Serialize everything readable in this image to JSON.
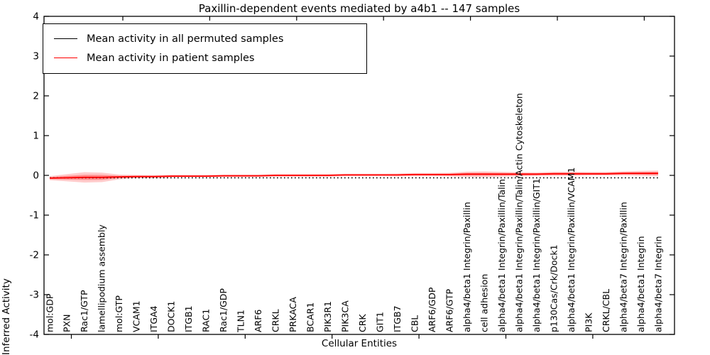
{
  "figure": {
    "title": "Paxillin-dependent events mediated by a4b1 -- 147 samples"
  },
  "legend": {
    "items": [
      {
        "label": "Mean activity in all permuted samples",
        "color": "#000000"
      },
      {
        "label": "Mean activity in patient samples",
        "color": "#ff0000"
      }
    ]
  },
  "axes": {
    "x_label": "Cellular Entities",
    "y_label": "Inferred Activity"
  },
  "chart_data": {
    "type": "line",
    "title": "Paxillin-dependent events mediated by a4b1 -- 147 samples",
    "xlabel": "Cellular Entities",
    "ylabel": "Inferred Activity",
    "ylim": [
      -4,
      4
    ],
    "yticks": [
      4,
      3,
      2,
      1,
      0,
      -1,
      -2,
      -3,
      -4
    ],
    "grid": false,
    "legend_position": "upper left",
    "categories": [
      "mol:GDP",
      "PXN",
      "Rac1/GTP",
      "lamellipodium assembly",
      "mol:GTP",
      "VCAM1",
      "ITGA4",
      "DOCK1",
      "ITGB1",
      "RAC1",
      "Rac1/GDP",
      "TLN1",
      "ARF6",
      "CRKL",
      "PRKACA",
      "BCAR1",
      "PIK3R1",
      "PIK3CA",
      "CRK",
      "GIT1",
      "ITGB7",
      "CBL",
      "ARF6/GDP",
      "ARF6/GTP",
      "alpha4/beta1 Integrin/Paxillin",
      "cell adhesion",
      "alpha4/beta1 Integrin/Paxillin/Talin",
      "alpha4/beta1 Integrin/Paxillin/Talin/Actin Cytoskeleton",
      "alpha4/beta1 Integrin/Paxillin/GIT1",
      "p130Cas/Crk/Dock1",
      "alpha4/beta1 Integrin/Paxillin/VCAM1",
      "PI3K",
      "CRKL/CBL",
      "alpha4/beta7 Integrin/Paxillin",
      "alpha4/beta1 Integrin",
      "alpha4/beta7 Integrin"
    ],
    "series": [
      {
        "name": "Mean activity in all permuted samples",
        "color": "#000000",
        "style": "dotted",
        "values": [
          -0.06,
          -0.06,
          -0.06,
          -0.06,
          -0.06,
          -0.06,
          -0.06,
          -0.06,
          -0.06,
          -0.06,
          -0.06,
          -0.06,
          -0.06,
          -0.06,
          -0.06,
          -0.06,
          -0.06,
          -0.06,
          -0.06,
          -0.06,
          -0.06,
          -0.06,
          -0.06,
          -0.06,
          -0.06,
          -0.06,
          -0.06,
          -0.06,
          -0.06,
          -0.06,
          -0.06,
          -0.06,
          -0.06,
          -0.06,
          -0.06,
          -0.06
        ]
      },
      {
        "name": "Mean activity in patient samples",
        "color": "#ff0000",
        "style": "solid",
        "values": [
          -0.07,
          -0.06,
          -0.05,
          -0.05,
          -0.04,
          -0.03,
          -0.03,
          -0.02,
          -0.02,
          -0.02,
          -0.01,
          -0.01,
          -0.01,
          0.0,
          0.0,
          0.0,
          0.0,
          0.01,
          0.01,
          0.01,
          0.01,
          0.02,
          0.02,
          0.02,
          0.03,
          0.03,
          0.03,
          0.03,
          0.03,
          0.04,
          0.04,
          0.04,
          0.04,
          0.05,
          0.05,
          0.05
        ],
        "band_halfwidth": [
          0.05,
          0.09,
          0.13,
          0.12,
          0.06,
          0.04,
          0.035,
          0.035,
          0.03,
          0.03,
          0.03,
          0.03,
          0.03,
          0.03,
          0.03,
          0.03,
          0.03,
          0.03,
          0.03,
          0.03,
          0.035,
          0.04,
          0.04,
          0.045,
          0.065,
          0.07,
          0.06,
          0.05,
          0.045,
          0.05,
          0.05,
          0.045,
          0.045,
          0.05,
          0.06,
          0.07
        ]
      }
    ]
  }
}
